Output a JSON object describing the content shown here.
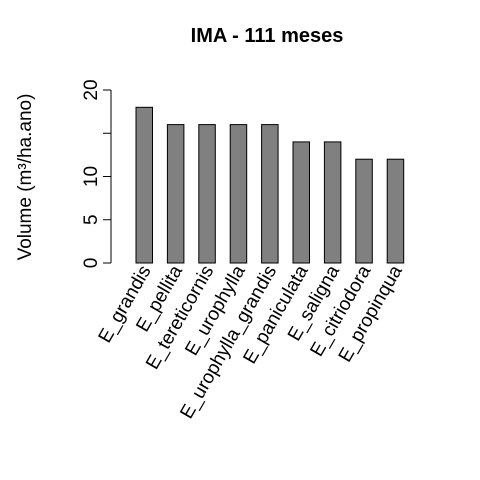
{
  "chart_data": {
    "type": "bar",
    "title": "IMA - 111 meses",
    "xlabel": "",
    "ylabel": "Volume (m³/ha.ano)",
    "categories": [
      "E_grandis",
      "E_pellita",
      "E_tereticornis",
      "E_urophylla",
      "E_urophylla_grandis",
      "E_paniculata",
      "E_saligna",
      "E_citriodora",
      "E_propinqua"
    ],
    "values": [
      18,
      16,
      16,
      16,
      16,
      14,
      14,
      12,
      12
    ],
    "yticks": [
      0,
      5,
      10,
      20
    ],
    "ylim": [
      0,
      20
    ],
    "bar_color": "#808080",
    "grid": false,
    "legend": "none"
  }
}
